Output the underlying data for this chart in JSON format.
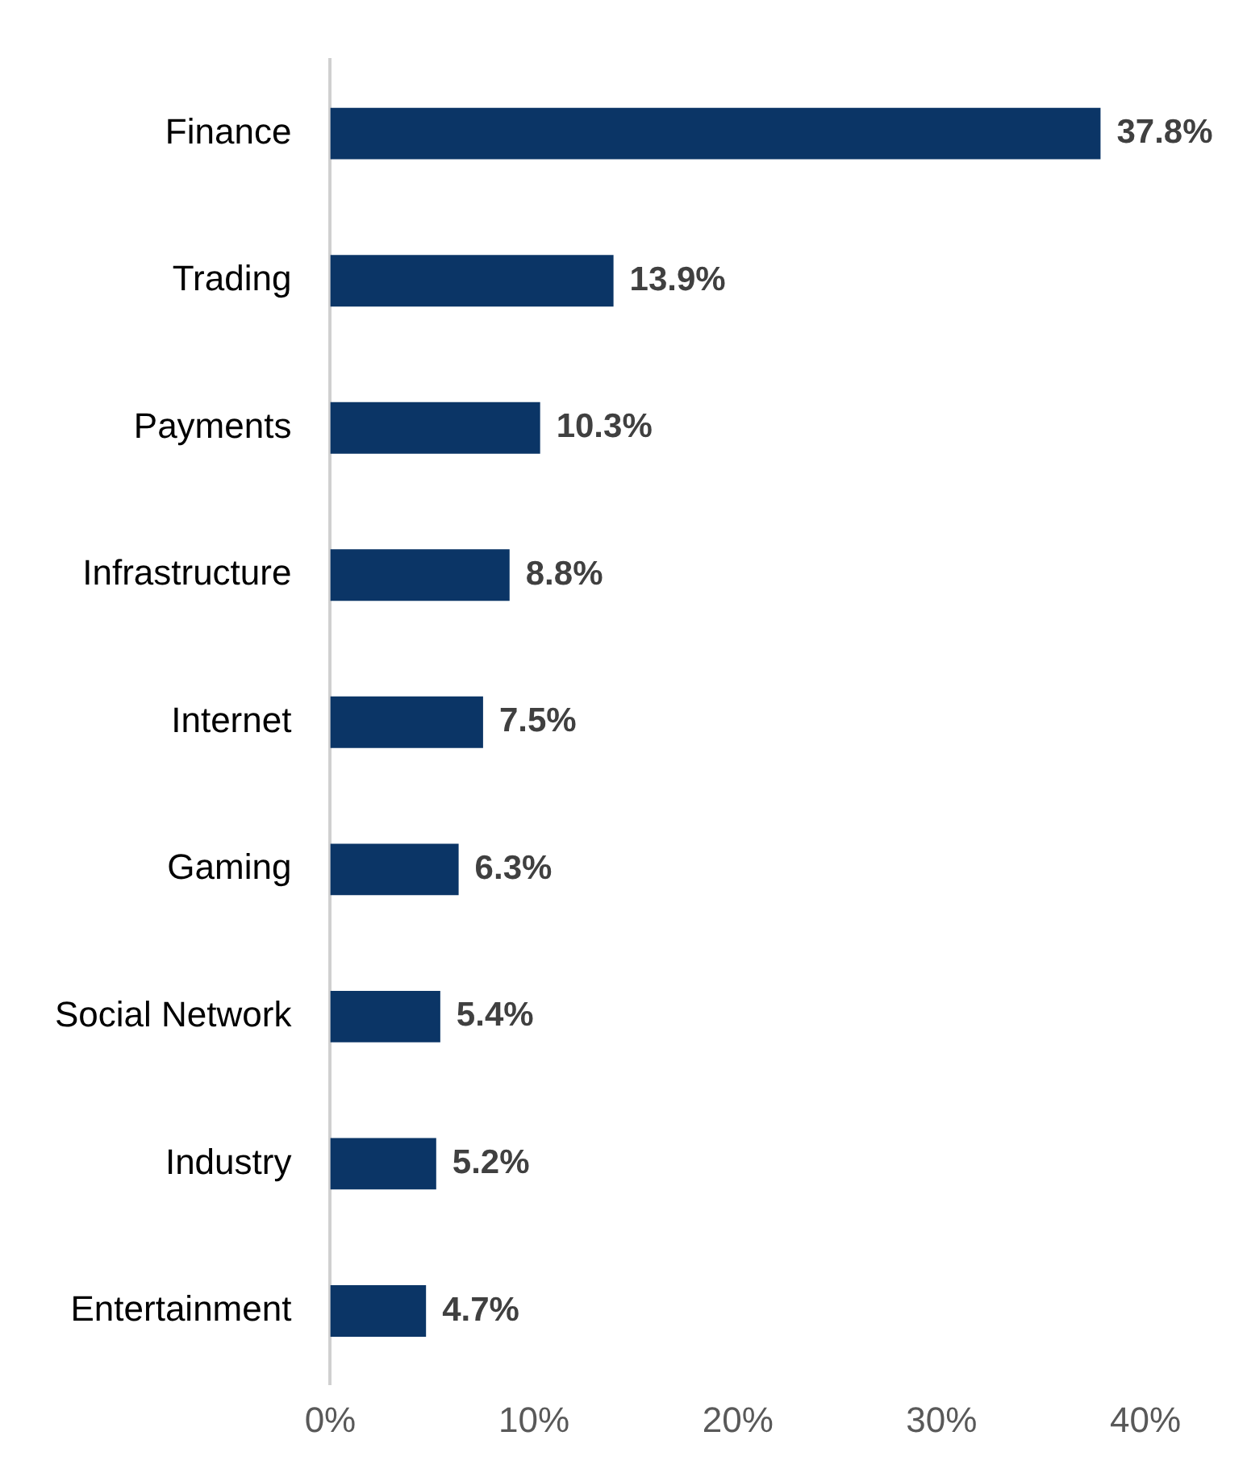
{
  "chart_data": {
    "type": "bar",
    "orientation": "horizontal",
    "categories": [
      "Finance",
      "Trading",
      "Payments",
      "Infrastructure",
      "Internet",
      "Gaming",
      "Social Network",
      "Industry",
      "Entertainment"
    ],
    "values": [
      37.8,
      13.9,
      10.3,
      8.8,
      7.5,
      6.3,
      5.4,
      5.2,
      4.7
    ],
    "value_labels": [
      "37.8%",
      "13.9%",
      "10.3%",
      "8.8%",
      "7.5%",
      "6.3%",
      "5.4%",
      "5.2%",
      "4.7%"
    ],
    "color": "#0b3566",
    "xlim": [
      0,
      40
    ],
    "xticks": [
      {
        "value": 0,
        "label": "0%"
      },
      {
        "value": 10,
        "label": "10%"
      },
      {
        "value": 20,
        "label": "20%"
      },
      {
        "value": 30,
        "label": "30%"
      },
      {
        "value": 40,
        "label": "40%"
      }
    ],
    "grid": false,
    "legend": false
  }
}
